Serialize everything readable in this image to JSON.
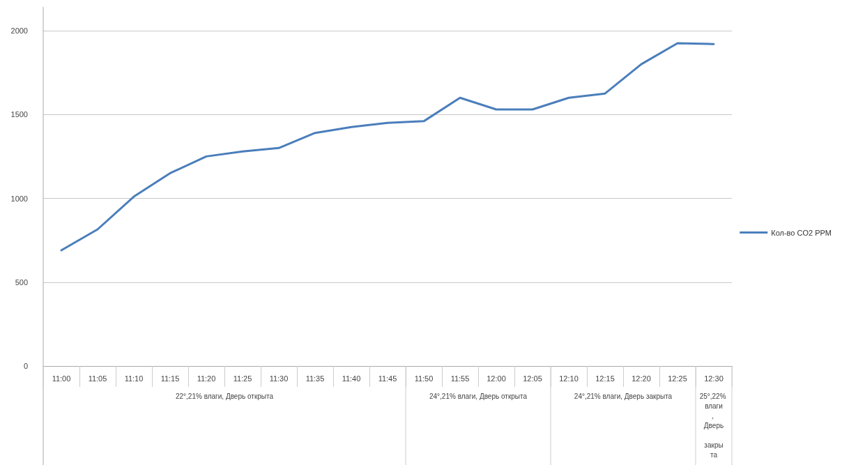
{
  "chart_data": {
    "type": "line",
    "categories": [
      "11:00",
      "11:05",
      "11:10",
      "11:15",
      "11:20",
      "11:25",
      "11:30",
      "11:35",
      "11:40",
      "11:45",
      "11:50",
      "11:55",
      "12:00",
      "12:05",
      "12:10",
      "12:15",
      "12:20",
      "12:25",
      "12:30"
    ],
    "series": [
      {
        "name": "Кол-во CO2 PPM",
        "color": "#4a7ebb",
        "values": [
          690,
          815,
          1010,
          1150,
          1250,
          1280,
          1300,
          1390,
          1425,
          1450,
          1460,
          1600,
          1530,
          1530,
          1600,
          1625,
          1800,
          1925,
          1920
        ]
      }
    ],
    "ylim": [
      0,
      2000
    ],
    "yticks": [
      0,
      500,
      1000,
      1500,
      2000
    ],
    "grid": "y",
    "legend": "right",
    "marker": "none",
    "line_style": "solid",
    "annotations": [
      "22°,21% влаги, Дверь открыта",
      "24°,21% влаги, Дверь открыта",
      "24°,21% влаги, Дверь закрыта",
      "25°,22% влаги, Дверь закрыта"
    ]
  }
}
